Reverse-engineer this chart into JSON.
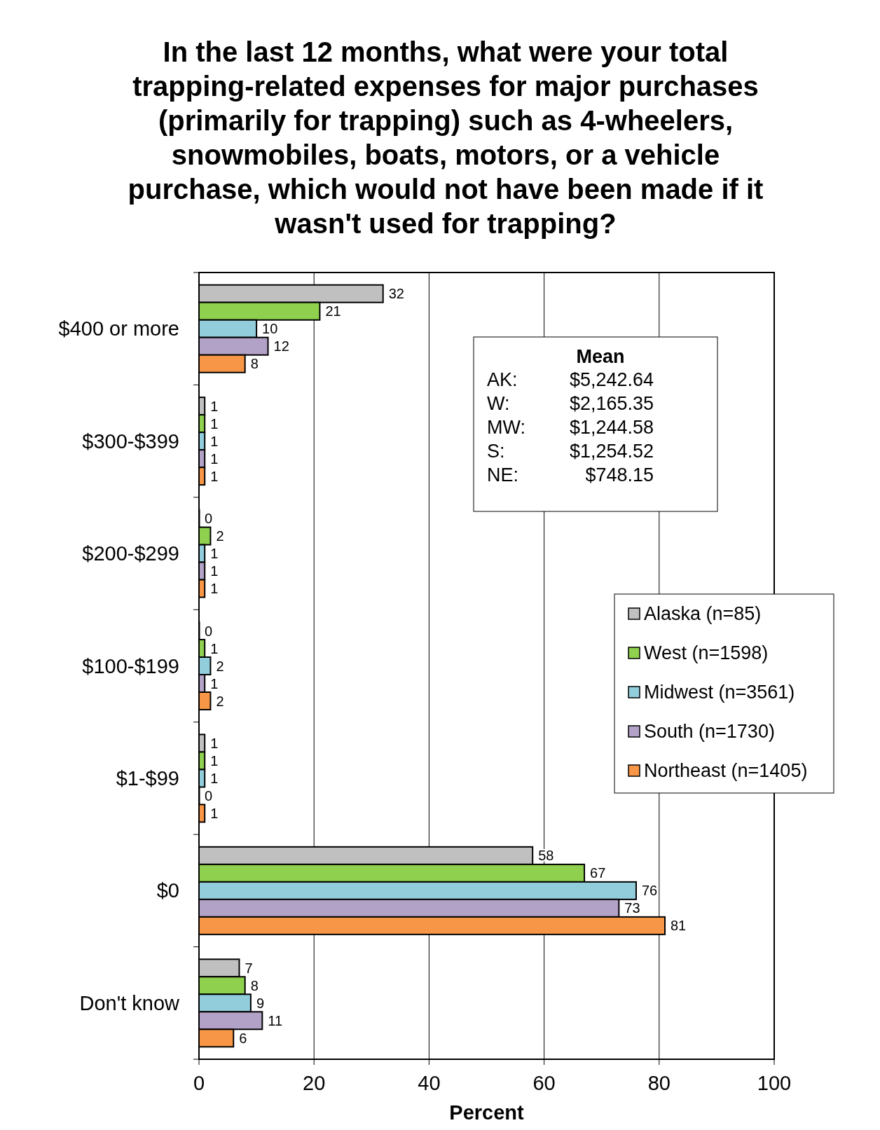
{
  "chart_data": {
    "type": "bar",
    "orientation": "horizontal",
    "title": "In the last 12 months, what were your total trapping-related expenses for major purchases (primarily for trapping) such as 4-wheelers, snowmobiles, boats, motors, or a vehicle purchase, which would not have been made if it wasn't used for trapping?",
    "xlabel": "Percent",
    "categories": [
      "$400 or more",
      "$300-$399",
      "$200-$299",
      "$100-$199",
      "$1-$99",
      "$0",
      "Don't know"
    ],
    "series": [
      {
        "name": "Alaska (n=85)",
        "color": "#c0c0c0",
        "values": [
          32,
          1,
          0,
          0,
          1,
          58,
          7
        ]
      },
      {
        "name": "West (n=1598)",
        "color": "#8fd14f",
        "values": [
          21,
          1,
          2,
          1,
          1,
          67,
          8
        ]
      },
      {
        "name": "Midwest (n=3561)",
        "color": "#92cddc",
        "values": [
          10,
          1,
          1,
          2,
          1,
          76,
          9
        ]
      },
      {
        "name": "South (n=1730)",
        "color": "#b3a2c7",
        "values": [
          12,
          1,
          1,
          1,
          0,
          73,
          11
        ]
      },
      {
        "name": "Northeast (n=1405)",
        "color": "#f79646",
        "values": [
          8,
          1,
          1,
          2,
          1,
          81,
          6
        ]
      }
    ],
    "xlim": [
      0,
      100
    ],
    "xticks": [
      0,
      20,
      40,
      60,
      80,
      100
    ],
    "grid": "x",
    "legend": "right",
    "data_labels": true,
    "annotations": [
      "Mean",
      "AK: $5,242.64",
      "W: $2,165.35",
      "MW: $1,244.58",
      "S: $1,254.52",
      "NE: $748.15"
    ]
  }
}
